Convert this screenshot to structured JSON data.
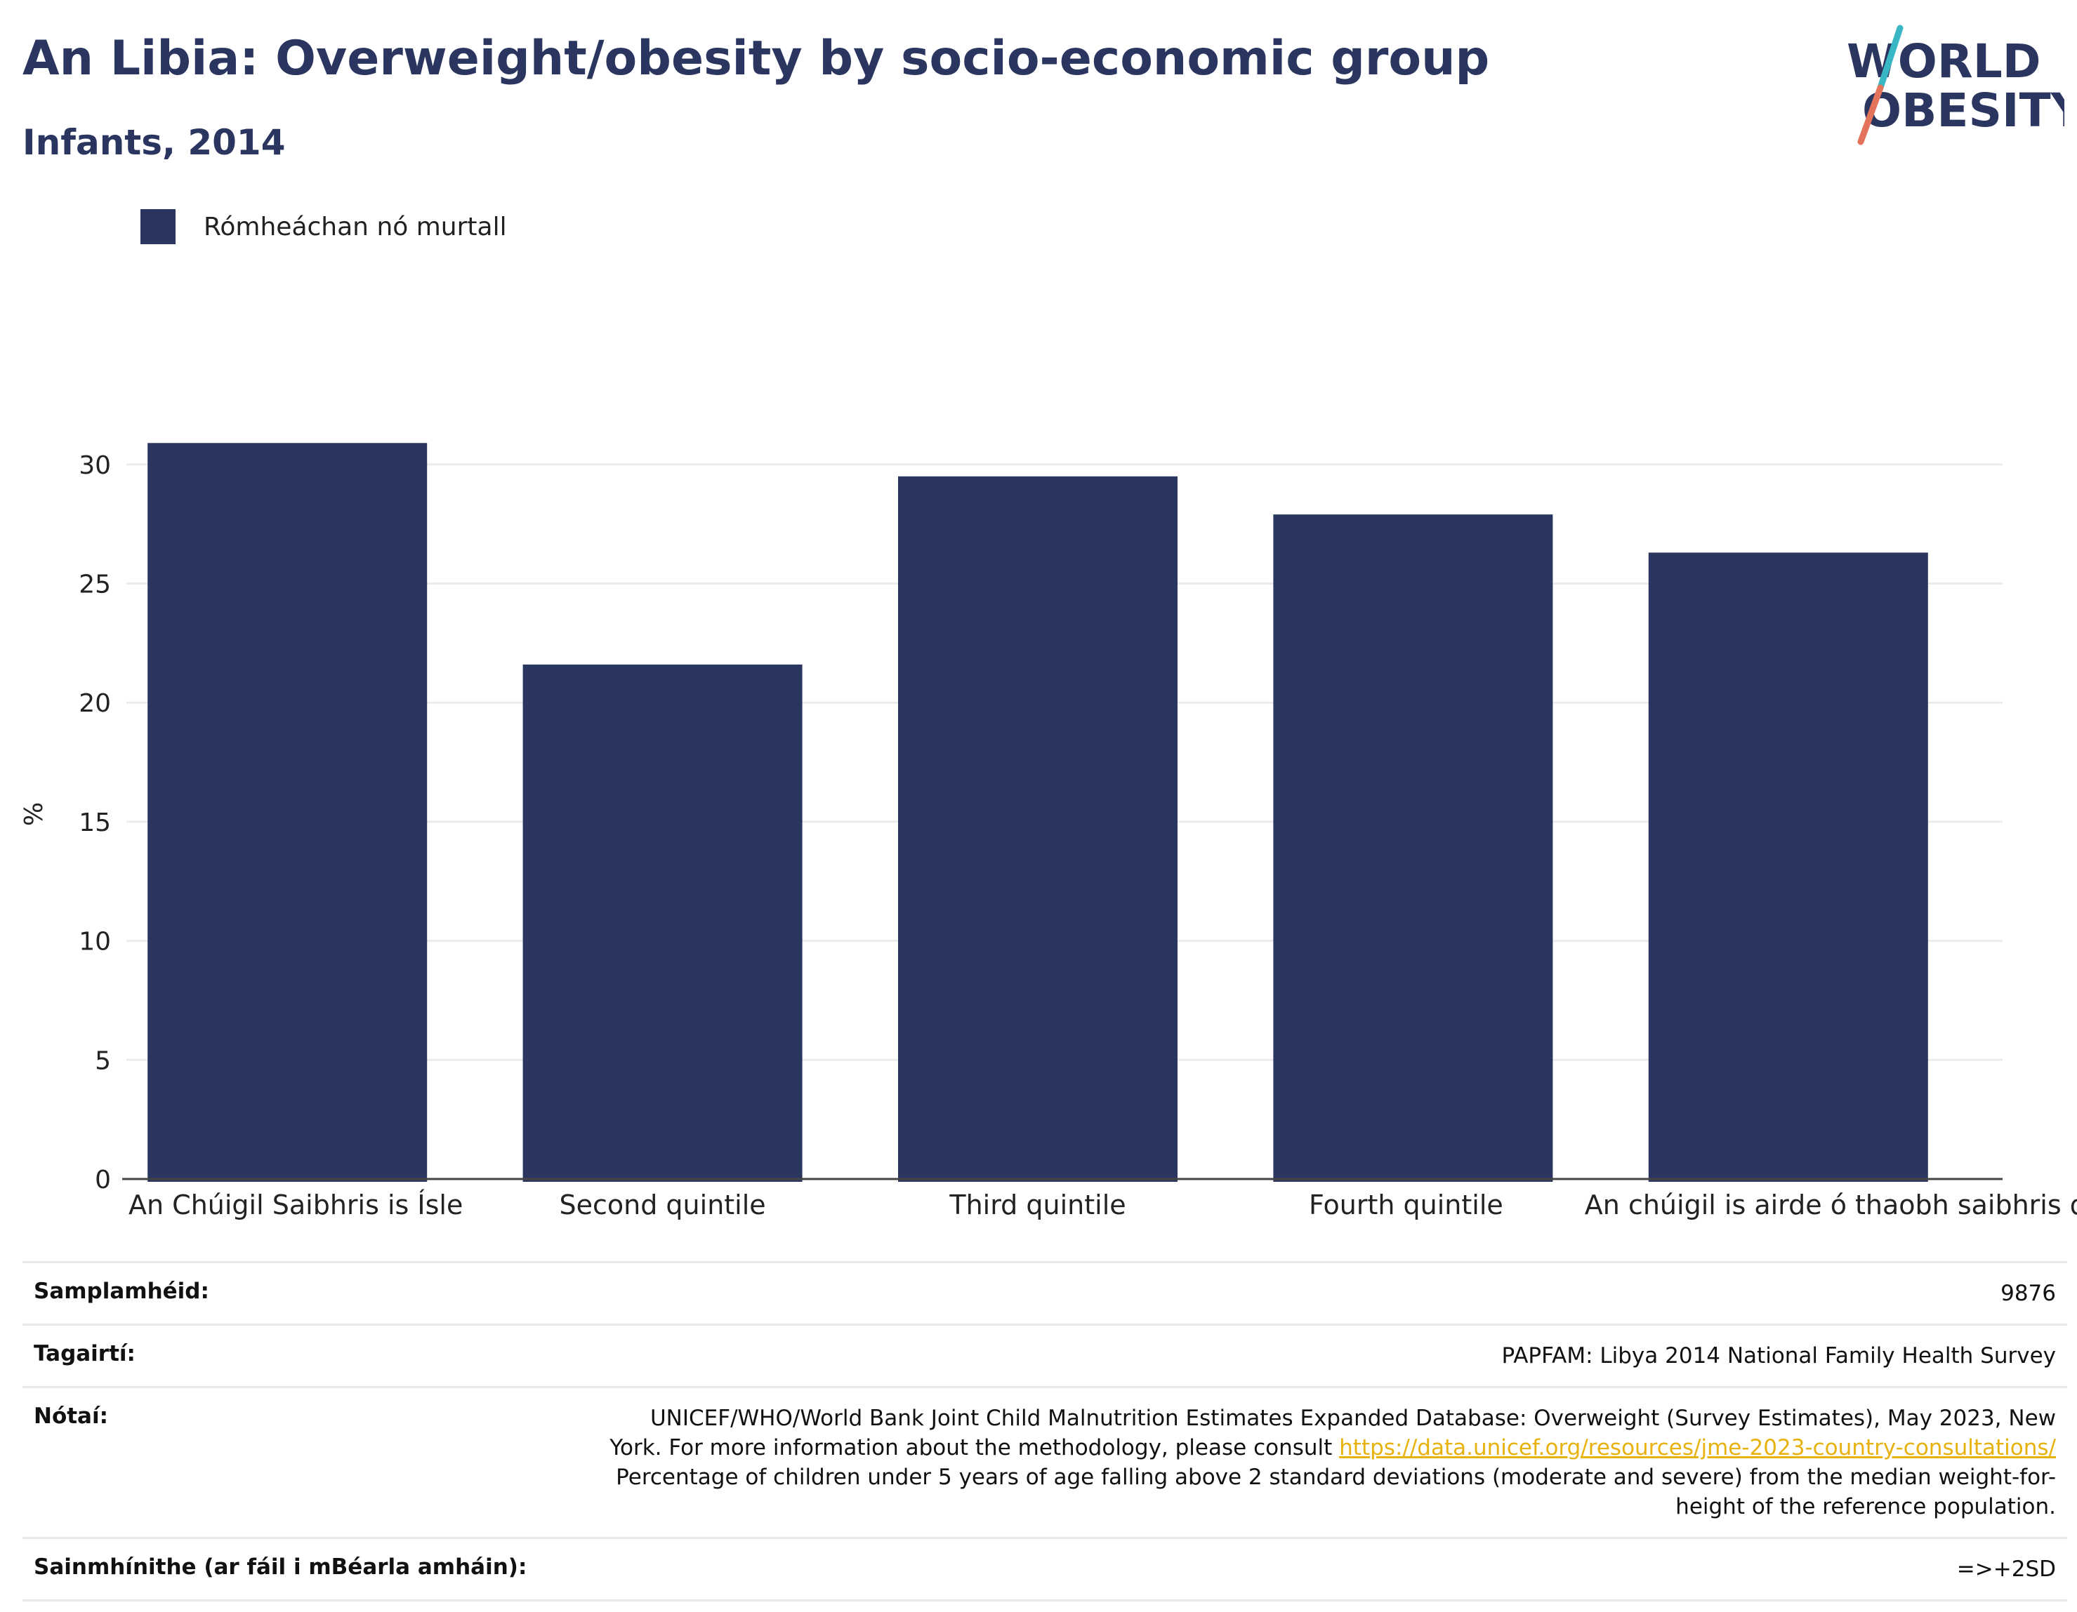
{
  "header": {
    "title": "An Libia: Overweight/obesity by socio-economic group",
    "subtitle": "Infants, 2014"
  },
  "logo": {
    "line1": "WORLD",
    "line2": "OBESITY",
    "colors": [
      "#2a3660",
      "#e4735b",
      "#3ab7c4"
    ]
  },
  "chart_data": {
    "type": "bar",
    "categories": [
      "An Chúigil Saibhris is Ísle",
      "Second quintile",
      "Third quintile",
      "Fourth quintile",
      "An chúigil is airde ó thaobh saibhris de"
    ],
    "series": [
      {
        "name": "Rómheáchan nó murtall",
        "color": "#2a3660",
        "values": [
          30.9,
          21.6,
          29.5,
          27.9,
          26.3
        ]
      }
    ],
    "title": "An Libia: Overweight/obesity by socio-economic group",
    "subtitle": "Infants, 2014",
    "xlabel": "",
    "ylabel": "%",
    "ylim": [
      0,
      33
    ],
    "yticks": [
      0,
      5,
      10,
      15,
      20,
      25,
      30
    ],
    "grid": true,
    "legend_position": "top-left"
  },
  "meta": {
    "sample_label": "Samplamhéid:",
    "sample_value": "9876",
    "refs_label": "Tagairtí:",
    "refs_value": "PAPFAM: Libya 2014 National Family Health Survey",
    "notes_label": "Nótaí:",
    "notes_line1": "UNICEF/WHO/World Bank Joint Child Malnutrition Estimates Expanded Database: Overweight (Survey Estimates), May 2023, New",
    "notes_line2a": "York. For more information about the methodology, please consult ",
    "notes_link": "https://data.unicef.org/resources/jme-2023-country-consultations/",
    "notes_line3": "Percentage of children under 5 years of age falling above 2 standard deviations (moderate and severe) from the median weight-for-",
    "notes_line4": "height of the reference population.",
    "defs_label": "Sainmhínithe (ar fáil i mBéarla amháin):",
    "defs_value": "=>+2SD"
  }
}
